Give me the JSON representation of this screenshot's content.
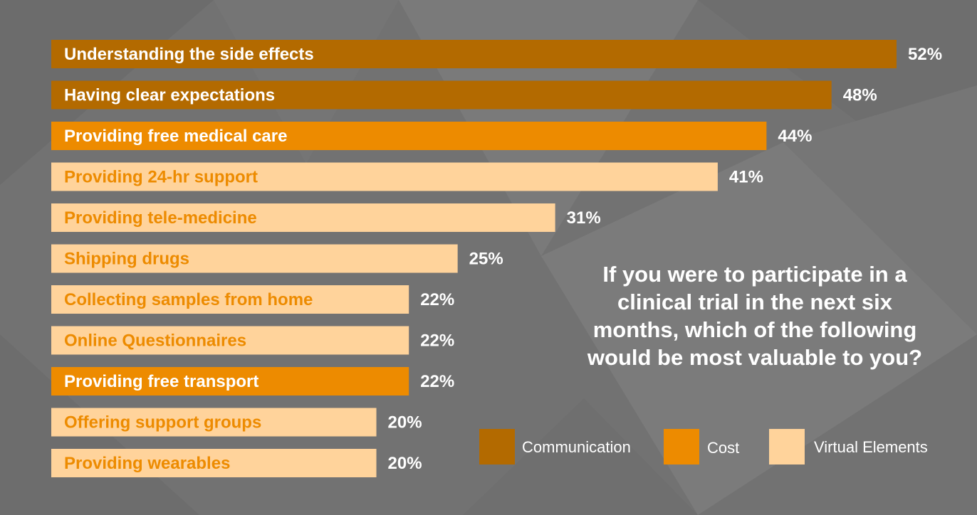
{
  "chart_data": {
    "type": "bar",
    "orientation": "horizontal",
    "title": "If you were to participate in a clinical trial in the next six months, which of the following would be most valuable to you?",
    "value_unit": "%",
    "xlim": [
      0,
      52
    ],
    "categories": [
      "Understanding the side effects",
      "Having clear expectations",
      "Providing free medical care",
      "Providing 24-hr support",
      "Providing tele-medicine",
      "Shipping drugs",
      "Collecting samples from home",
      "Online Questionnaires",
      "Providing free transport",
      "Offering support groups",
      "Providing wearables"
    ],
    "values": [
      52,
      48,
      44,
      41,
      31,
      25,
      22,
      22,
      22,
      20,
      20
    ],
    "value_labels": [
      "52%",
      "48%",
      "44%",
      "41%",
      "31%",
      "25%",
      "22%",
      "22%",
      "22%",
      "20%",
      "20%"
    ],
    "groups": [
      "Communication",
      "Communication",
      "Cost",
      "Virtual Elements",
      "Virtual Elements",
      "Virtual Elements",
      "Virtual Elements",
      "Virtual Elements",
      "Cost",
      "Virtual Elements",
      "Virtual Elements"
    ],
    "legend": [
      {
        "name": "Communication",
        "color": "#b36a00",
        "text_color": "#ffffff"
      },
      {
        "name": "Cost",
        "color": "#ed8b00",
        "text_color": "#ffffff"
      },
      {
        "name": "Virtual Elements",
        "color": "#ffd39b",
        "text_color": "#ed8b00"
      }
    ],
    "legend_position": "bottom-right"
  },
  "question": {
    "lines": [
      "If you were to participate in a",
      "clinical trial in the next six",
      "months, which of the following",
      "would be most valuable to you?"
    ]
  },
  "colors": {
    "background": "#727272",
    "value_text": "#ffffff"
  }
}
